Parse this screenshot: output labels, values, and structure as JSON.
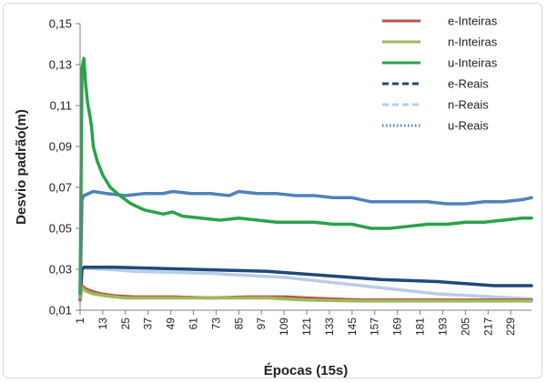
{
  "chart_data": {
    "type": "line",
    "xlabel": "Épocas (15s)",
    "ylabel": "Desvio padrão(m)",
    "ylim": [
      0.01,
      0.15
    ],
    "xlim": [
      1,
      240
    ],
    "yticks": [
      "0,01",
      "0,03",
      "0,05",
      "0,07",
      "0,09",
      "0,11",
      "0,13",
      "0,15"
    ],
    "xticks": [
      "1",
      "13",
      "25",
      "37",
      "49",
      "61",
      "73",
      "85",
      "97",
      "109",
      "121",
      "133",
      "145",
      "157",
      "169",
      "181",
      "193",
      "205",
      "217",
      "229"
    ],
    "legend_position": "top-right",
    "grid": false,
    "series": [
      {
        "name": "e-Inteiras",
        "color": "#c0504d",
        "style": "solid",
        "points": [
          [
            1,
            0.015
          ],
          [
            2,
            0.022
          ],
          [
            3,
            0.021
          ],
          [
            5,
            0.02
          ],
          [
            8,
            0.019
          ],
          [
            12,
            0.018
          ],
          [
            20,
            0.017
          ],
          [
            30,
            0.0165
          ],
          [
            50,
            0.0165
          ],
          [
            70,
            0.016
          ],
          [
            90,
            0.0165
          ],
          [
            110,
            0.0165
          ],
          [
            120,
            0.016
          ],
          [
            150,
            0.015
          ],
          [
            180,
            0.015
          ],
          [
            200,
            0.015
          ],
          [
            220,
            0.015
          ],
          [
            240,
            0.015
          ]
        ]
      },
      {
        "name": "n-Inteiras",
        "color": "#9bbb59",
        "style": "solid",
        "points": [
          [
            1,
            0.016
          ],
          [
            2,
            0.021
          ],
          [
            3,
            0.02
          ],
          [
            5,
            0.019
          ],
          [
            8,
            0.018
          ],
          [
            15,
            0.017
          ],
          [
            25,
            0.016
          ],
          [
            40,
            0.016
          ],
          [
            60,
            0.016
          ],
          [
            80,
            0.016
          ],
          [
            100,
            0.016
          ],
          [
            120,
            0.015
          ],
          [
            150,
            0.0145
          ],
          [
            180,
            0.0145
          ],
          [
            210,
            0.0145
          ],
          [
            240,
            0.0145
          ]
        ]
      },
      {
        "name": "u-Inteiras",
        "color": "#2ba24c",
        "style": "solid",
        "points": [
          [
            1,
            0.018
          ],
          [
            2,
            0.128
          ],
          [
            3,
            0.133
          ],
          [
            4,
            0.12
          ],
          [
            5,
            0.111
          ],
          [
            6,
            0.106
          ],
          [
            7,
            0.1
          ],
          [
            8,
            0.09
          ],
          [
            10,
            0.083
          ],
          [
            13,
            0.076
          ],
          [
            17,
            0.07
          ],
          [
            22,
            0.066
          ],
          [
            28,
            0.062
          ],
          [
            35,
            0.059
          ],
          [
            45,
            0.057
          ],
          [
            50,
            0.058
          ],
          [
            55,
            0.056
          ],
          [
            65,
            0.055
          ],
          [
            75,
            0.054
          ],
          [
            85,
            0.055
          ],
          [
            95,
            0.054
          ],
          [
            105,
            0.053
          ],
          [
            115,
            0.053
          ],
          [
            125,
            0.053
          ],
          [
            135,
            0.052
          ],
          [
            145,
            0.052
          ],
          [
            155,
            0.05
          ],
          [
            165,
            0.05
          ],
          [
            175,
            0.051
          ],
          [
            185,
            0.052
          ],
          [
            195,
            0.052
          ],
          [
            205,
            0.053
          ],
          [
            215,
            0.053
          ],
          [
            225,
            0.054
          ],
          [
            235,
            0.055
          ],
          [
            240,
            0.055
          ]
        ]
      },
      {
        "name": "e-Reais",
        "color": "#1f497d",
        "style": "dashed",
        "points": [
          [
            1,
            0.015
          ],
          [
            2,
            0.03
          ],
          [
            3,
            0.031
          ],
          [
            10,
            0.031
          ],
          [
            20,
            0.031
          ],
          [
            40,
            0.0305
          ],
          [
            60,
            0.03
          ],
          [
            80,
            0.0295
          ],
          [
            100,
            0.029
          ],
          [
            115,
            0.028
          ],
          [
            130,
            0.027
          ],
          [
            145,
            0.026
          ],
          [
            160,
            0.025
          ],
          [
            175,
            0.0245
          ],
          [
            190,
            0.024
          ],
          [
            205,
            0.023
          ],
          [
            220,
            0.022
          ],
          [
            240,
            0.022
          ]
        ]
      },
      {
        "name": "n-Reais",
        "color": "#b9cde5",
        "style": "dashed",
        "points": [
          [
            1,
            0.016
          ],
          [
            2,
            0.03
          ],
          [
            3,
            0.0305
          ],
          [
            15,
            0.03
          ],
          [
            30,
            0.029
          ],
          [
            50,
            0.0285
          ],
          [
            70,
            0.028
          ],
          [
            90,
            0.027
          ],
          [
            110,
            0.026
          ],
          [
            130,
            0.024
          ],
          [
            150,
            0.022
          ],
          [
            170,
            0.02
          ],
          [
            190,
            0.018
          ],
          [
            210,
            0.017
          ],
          [
            230,
            0.016
          ],
          [
            240,
            0.0155
          ]
        ]
      },
      {
        "name": "u-Reais",
        "color": "#4f81bd",
        "style": "dotted",
        "points": [
          [
            1,
            0.018
          ],
          [
            2,
            0.064
          ],
          [
            3,
            0.066
          ],
          [
            8,
            0.068
          ],
          [
            15,
            0.067
          ],
          [
            25,
            0.066
          ],
          [
            35,
            0.067
          ],
          [
            45,
            0.067
          ],
          [
            50,
            0.068
          ],
          [
            60,
            0.067
          ],
          [
            70,
            0.067
          ],
          [
            80,
            0.066
          ],
          [
            85,
            0.068
          ],
          [
            95,
            0.067
          ],
          [
            105,
            0.067
          ],
          [
            115,
            0.066
          ],
          [
            125,
            0.066
          ],
          [
            135,
            0.065
          ],
          [
            145,
            0.065
          ],
          [
            155,
            0.063
          ],
          [
            165,
            0.063
          ],
          [
            175,
            0.063
          ],
          [
            185,
            0.063
          ],
          [
            195,
            0.062
          ],
          [
            205,
            0.062
          ],
          [
            215,
            0.063
          ],
          [
            225,
            0.063
          ],
          [
            235,
            0.064
          ],
          [
            240,
            0.065
          ]
        ]
      }
    ]
  }
}
